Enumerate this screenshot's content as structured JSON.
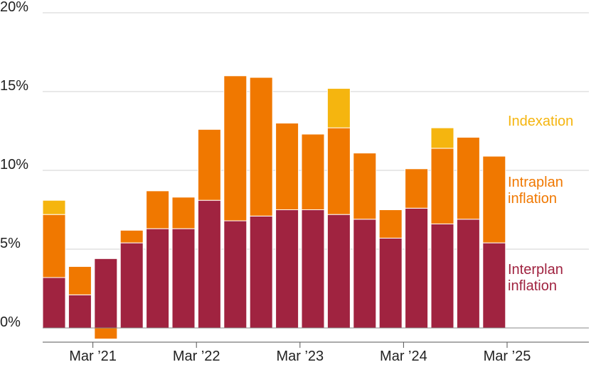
{
  "chart_data": {
    "type": "bar",
    "stacked": true,
    "x_tick_labels": [
      "Mar ’21",
      "Mar ’22",
      "Mar ’23",
      "Mar ’24",
      "Mar ’25"
    ],
    "y_tick_labels": [
      "0%",
      "5%",
      "10%",
      "15%",
      "20%"
    ],
    "y_ticks": [
      0,
      5,
      10,
      15,
      20
    ],
    "ylim": [
      -0.8,
      20
    ],
    "grid": true,
    "legend_placement": "right",
    "series": [
      {
        "name": "Interplan inflation",
        "color": "#a02340",
        "values": [
          3.2,
          2.1,
          4.4,
          5.4,
          6.3,
          6.3,
          8.1,
          6.8,
          7.1,
          7.5,
          7.5,
          7.2,
          6.9,
          5.7,
          7.6,
          6.6,
          6.9,
          5.4
        ],
        "legend_lines": [
          "Interplan",
          "inflation"
        ]
      },
      {
        "name": "Intraplan inflation",
        "color": "#f07800",
        "values": [
          4.0,
          1.8,
          -0.7,
          0.8,
          2.4,
          2.0,
          4.5,
          9.2,
          8.8,
          5.5,
          4.8,
          5.5,
          4.2,
          1.8,
          2.5,
          4.8,
          5.2,
          5.5
        ],
        "legend_lines": [
          "Intraplan",
          "inflation"
        ]
      },
      {
        "name": "Indexation",
        "color": "#f5b50f",
        "values": [
          0.9,
          0,
          0,
          0,
          0,
          0,
          0,
          0,
          0,
          0,
          0,
          2.5,
          0,
          0,
          0,
          1.3,
          0,
          0
        ],
        "legend_lines": [
          "Indexation"
        ]
      }
    ]
  }
}
